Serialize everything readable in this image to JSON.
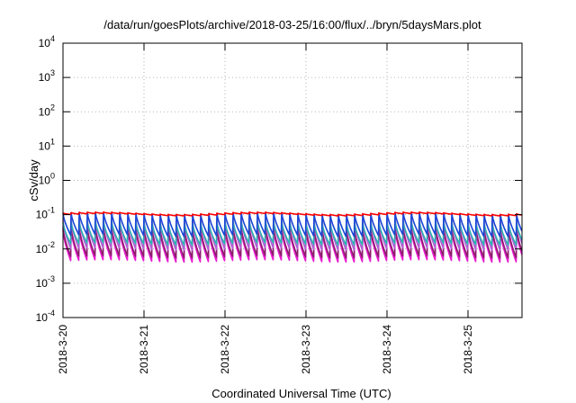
{
  "chart_data": {
    "type": "line",
    "title": "/data/run/goesPlots/archive/2018-03-25/16:00/flux/../bryn/5daysMars.plot",
    "xlabel": "Coordinated Universal Time (UTC)",
    "ylabel": "cSv/day",
    "yscale": "log",
    "ylim": [
      0.0001,
      10000
    ],
    "y_ticks": [
      {
        "base": "10",
        "exp": "-4"
      },
      {
        "base": "10",
        "exp": "-3"
      },
      {
        "base": "10",
        "exp": "-2"
      },
      {
        "base": "10",
        "exp": "-1"
      },
      {
        "base": "10",
        "exp": "0"
      },
      {
        "base": "10",
        "exp": "1"
      },
      {
        "base": "10",
        "exp": "2"
      },
      {
        "base": "10",
        "exp": "3"
      },
      {
        "base": "10",
        "exp": "4"
      }
    ],
    "x_range": [
      "2018-03-20 00:00",
      "2018-03-25 16:00"
    ],
    "x_ticks": [
      "2018-3-20",
      "2018-3-21",
      "2018-3-22",
      "2018-3-23",
      "2018-3-24",
      "2018-3-25"
    ],
    "grid": true,
    "legend": "none",
    "cycle_hours": 2.4,
    "series": [
      {
        "color": "#ff0000",
        "peak": 0.11,
        "trough": 0.1
      },
      {
        "color": "#1a46d6",
        "peak": 0.11,
        "trough": 0.025
      },
      {
        "color": "#2ab0b0",
        "peak": 0.06,
        "trough": 0.014
      },
      {
        "color": "#b05ed8",
        "peak": 0.07,
        "trough": 0.01
      },
      {
        "color": "#ff33ff",
        "peak": 0.045,
        "trough": 0.0055
      },
      {
        "color": "#e91ad0",
        "peak": 0.035,
        "trough": 0.0045
      },
      {
        "color": "#8a1f6a",
        "peak": 0.04,
        "trough": 0.006
      }
    ]
  }
}
